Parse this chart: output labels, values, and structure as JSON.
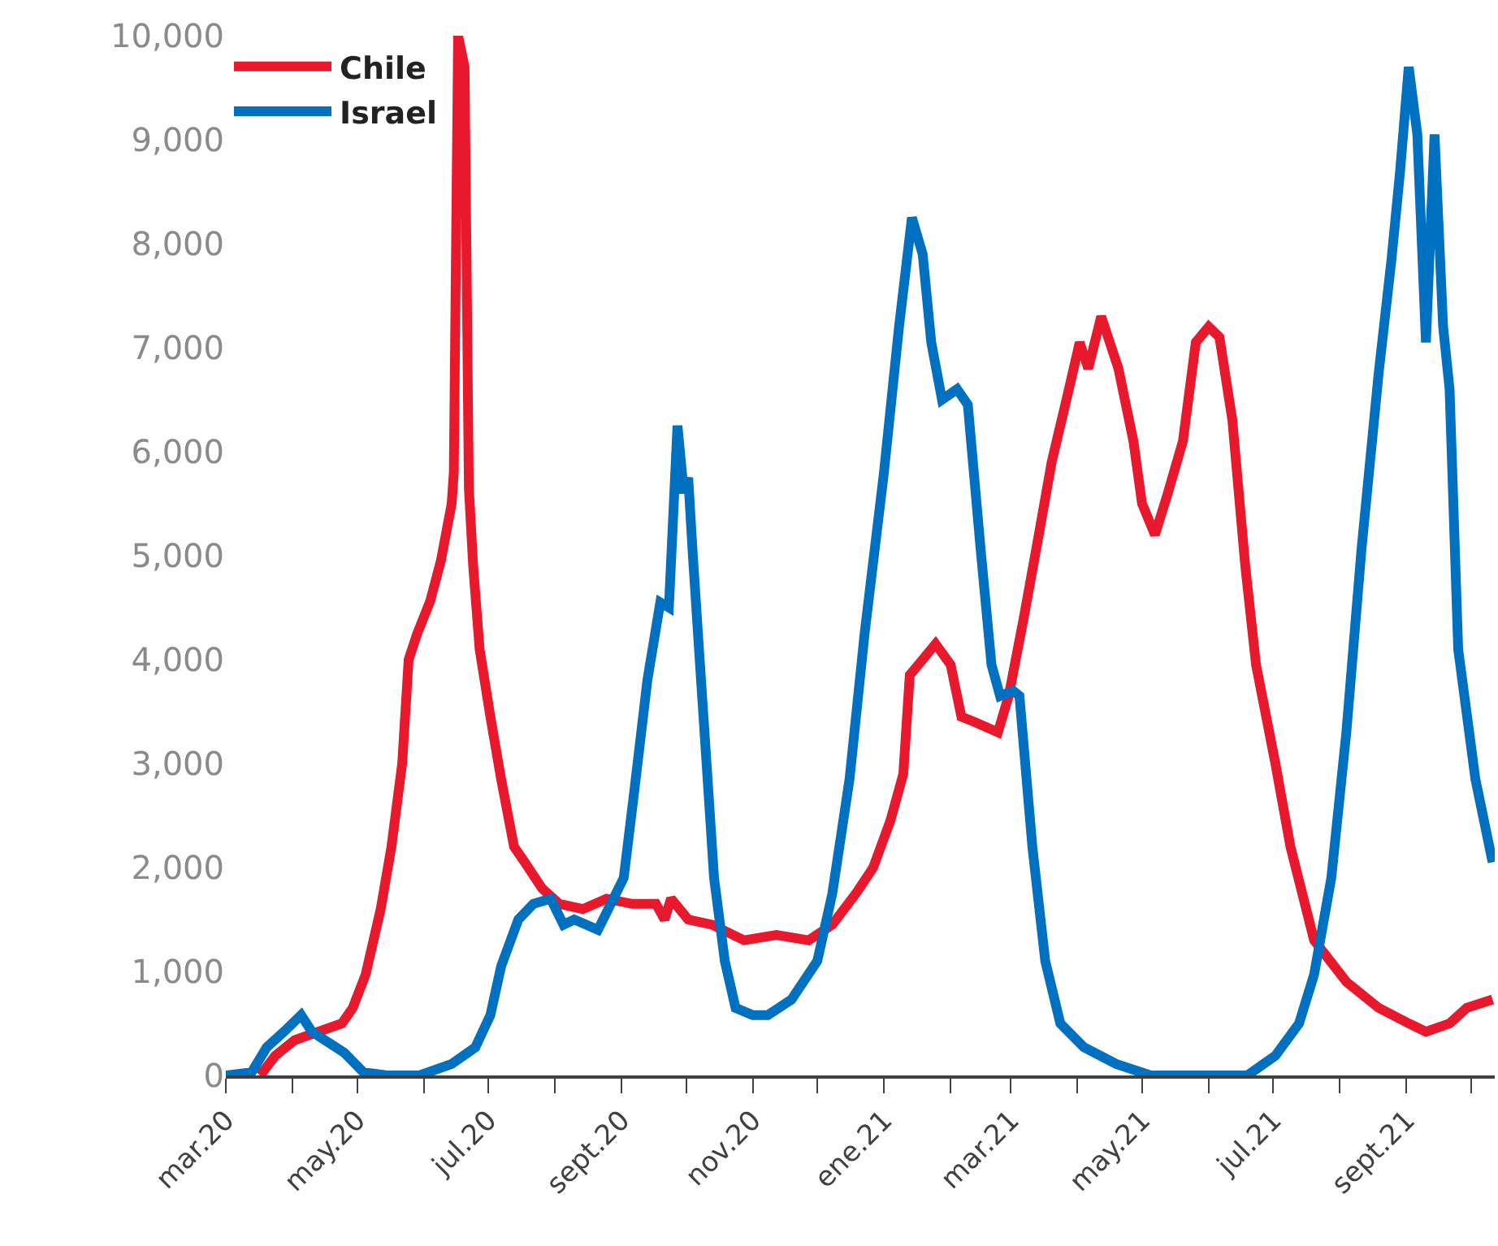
{
  "chart_data": {
    "type": "line",
    "xlim": [
      "2020-03-01",
      "2021-10-12"
    ],
    "xticks": [
      {
        "value": "2020-03-01",
        "label": "mar.20"
      },
      {
        "value": "2020-04-01",
        "label": null
      },
      {
        "value": "2020-05-01",
        "label": "may.20"
      },
      {
        "value": "2020-06-01",
        "label": null
      },
      {
        "value": "2020-07-01",
        "label": "jul.20"
      },
      {
        "value": "2020-08-01",
        "label": null
      },
      {
        "value": "2020-09-01",
        "label": "sept.20"
      },
      {
        "value": "2020-10-01",
        "label": null
      },
      {
        "value": "2020-11-01",
        "label": "nov.20"
      },
      {
        "value": "2020-12-01",
        "label": null
      },
      {
        "value": "2021-01-01",
        "label": "ene.21"
      },
      {
        "value": "2021-02-01",
        "label": null
      },
      {
        "value": "2021-03-01",
        "label": "mar.21"
      },
      {
        "value": "2021-04-01",
        "label": null
      },
      {
        "value": "2021-05-01",
        "label": "may.21"
      },
      {
        "value": "2021-06-01",
        "label": null
      },
      {
        "value": "2021-07-01",
        "label": "jul.21"
      },
      {
        "value": "2021-08-01",
        "label": null
      },
      {
        "value": "2021-09-01",
        "label": "sept.21"
      },
      {
        "value": "2021-10-01",
        "label": null
      }
    ],
    "ylim": [
      0,
      10000
    ],
    "yticks": [
      0,
      {
        "value": 1000,
        "label": "1,000"
      },
      {
        "value": 2000,
        "label": "2,000"
      },
      {
        "value": 3000,
        "label": "3,000"
      },
      {
        "value": 4000,
        "label": "4,000"
      },
      {
        "value": 5000,
        "label": "5,000"
      },
      {
        "value": 6000,
        "label": "6,000"
      },
      {
        "value": 7000,
        "label": "7,000"
      },
      {
        "value": 8000,
        "label": "8,000"
      },
      {
        "value": 9000,
        "label": "9,000"
      },
      {
        "value": 10000,
        "label": "10,000"
      }
    ],
    "legend": "top left",
    "marker": "none",
    "line_style": "solid",
    "series": [
      {
        "name": "Chile",
        "color": "#e8192c",
        "x": [
          "2020-03-17",
          "2020-03-24",
          "2020-04-02",
          "2020-04-13",
          "2020-04-24",
          "2020-04-29",
          "2020-05-05",
          "2020-05-12",
          "2020-05-17",
          "2020-05-22",
          "2020-05-25",
          "2020-05-29",
          "2020-06-04",
          "2020-06-09",
          "2020-06-14",
          "2020-06-15",
          "2020-06-17",
          "2020-06-20",
          "2020-06-22",
          "2020-06-24",
          "2020-06-27",
          "2020-07-02",
          "2020-07-07",
          "2020-07-13",
          "2020-07-18",
          "2020-07-26",
          "2020-08-03",
          "2020-08-14",
          "2020-08-25",
          "2020-09-06",
          "2020-09-17",
          "2020-09-21",
          "2020-09-24",
          "2020-10-02",
          "2020-10-13",
          "2020-10-28",
          "2020-11-12",
          "2020-11-27",
          "2020-12-08",
          "2020-12-19",
          "2020-12-27",
          "2021-01-04",
          "2021-01-10",
          "2021-01-13",
          "2021-01-19",
          "2021-01-25",
          "2021-02-01",
          "2021-02-06",
          "2021-02-12",
          "2021-02-23",
          "2021-02-28",
          "2021-03-07",
          "2021-03-14",
          "2021-03-20",
          "2021-03-28",
          "2021-04-02",
          "2021-04-06",
          "2021-04-12",
          "2021-04-20",
          "2021-04-27",
          "2021-05-01",
          "2021-05-07",
          "2021-05-13",
          "2021-05-20",
          "2021-05-26",
          "2021-06-01",
          "2021-06-06",
          "2021-06-12",
          "2021-06-18",
          "2021-06-23",
          "2021-07-02",
          "2021-07-09",
          "2021-07-20",
          "2021-08-04",
          "2021-08-19",
          "2021-09-02",
          "2021-09-10",
          "2021-09-21",
          "2021-09-29",
          "2021-10-11"
        ],
        "values": [
          0,
          190,
          340,
          420,
          500,
          650,
          970,
          1600,
          2200,
          3000,
          4000,
          4250,
          4560,
          4950,
          5500,
          5800,
          10000,
          9700,
          5650,
          4900,
          4100,
          3450,
          2850,
          2200,
          2050,
          1800,
          1650,
          1600,
          1700,
          1650,
          1650,
          1500,
          1700,
          1500,
          1450,
          1300,
          1350,
          1300,
          1450,
          1750,
          2000,
          2450,
          2900,
          3850,
          4000,
          4150,
          3950,
          3450,
          3400,
          3300,
          3650,
          4400,
          5200,
          5900,
          6600,
          7050,
          6800,
          7300,
          6800,
          6100,
          5500,
          5200,
          5600,
          6100,
          7050,
          7200,
          7100,
          6300,
          4900,
          3950,
          3000,
          2200,
          1300,
          900,
          650,
          500,
          420,
          500,
          650,
          730
        ]
      },
      {
        "name": "Israel",
        "color": "#0070c0",
        "x": [
          "2020-03-01",
          "2020-03-13",
          "2020-03-20",
          "2020-03-28",
          "2020-04-05",
          "2020-04-10",
          "2020-04-16",
          "2020-04-25",
          "2020-05-04",
          "2020-05-15",
          "2020-05-30",
          "2020-06-14",
          "2020-06-25",
          "2020-07-02",
          "2020-07-07",
          "2020-07-15",
          "2020-07-22",
          "2020-07-30",
          "2020-08-05",
          "2020-08-10",
          "2020-08-21",
          "2020-08-27",
          "2020-09-02",
          "2020-09-07",
          "2020-09-13",
          "2020-09-19",
          "2020-09-23",
          "2020-09-27",
          "2020-09-30",
          "2020-10-02",
          "2020-10-04",
          "2020-10-07",
          "2020-10-11",
          "2020-10-14",
          "2020-10-19",
          "2020-10-24",
          "2020-11-01",
          "2020-11-08",
          "2020-11-19",
          "2020-12-01",
          "2020-12-08",
          "2020-12-16",
          "2020-12-23",
          "2021-01-01",
          "2021-01-08",
          "2021-01-14",
          "2021-01-19",
          "2021-01-23",
          "2021-01-28",
          "2021-02-04",
          "2021-02-09",
          "2021-02-15",
          "2021-02-20",
          "2021-02-24",
          "2021-03-02",
          "2021-03-05",
          "2021-03-11",
          "2021-03-17",
          "2021-03-24",
          "2021-04-04",
          "2021-04-19",
          "2021-05-05",
          "2021-06-19",
          "2021-07-02",
          "2021-07-13",
          "2021-07-20",
          "2021-07-28",
          "2021-08-04",
          "2021-08-11",
          "2021-08-19",
          "2021-08-25",
          "2021-08-29",
          "2021-09-02",
          "2021-09-06",
          "2021-09-10",
          "2021-09-14",
          "2021-09-18",
          "2021-09-21",
          "2021-09-25",
          "2021-10-03",
          "2021-10-11"
        ],
        "values": [
          0,
          30,
          270,
          420,
          580,
          420,
          340,
          220,
          30,
          0,
          0,
          110,
          270,
          580,
          1050,
          1500,
          1650,
          1700,
          1450,
          1500,
          1400,
          1650,
          1900,
          2750,
          3800,
          4550,
          4500,
          6250,
          5600,
          5750,
          5050,
          4100,
          2850,
          1900,
          1100,
          650,
          580,
          580,
          730,
          1100,
          1750,
          2850,
          4250,
          5800,
          7200,
          8250,
          7900,
          7050,
          6500,
          6600,
          6450,
          5050,
          3950,
          3650,
          3700,
          3650,
          2200,
          1100,
          500,
          270,
          110,
          0,
          0,
          190,
          500,
          970,
          1900,
          3300,
          5050,
          6750,
          7850,
          8700,
          9700,
          9050,
          7050,
          9050,
          7200,
          6600,
          4100,
          2850,
          2050
        ]
      }
    ]
  }
}
